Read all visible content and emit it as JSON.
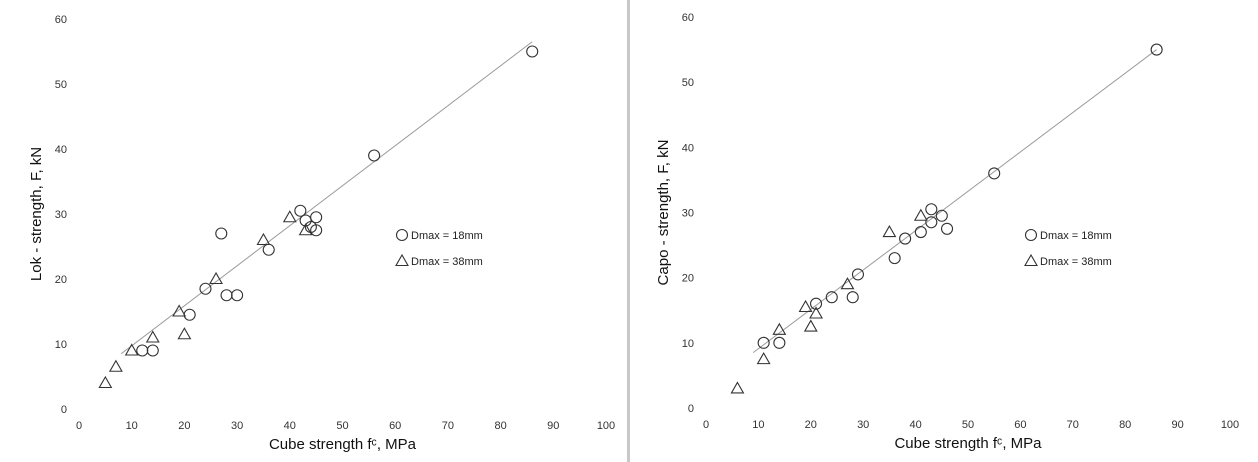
{
  "chart_data": [
    {
      "type": "scatter",
      "title": "",
      "xlabel": "Cube strength fᶜ, MPa",
      "ylabel": "Lok - strength, F, kN",
      "xlim": [
        0,
        100
      ],
      "ylim": [
        0,
        60
      ],
      "xticks": [
        0,
        10,
        20,
        30,
        40,
        50,
        60,
        70,
        80,
        90,
        100
      ],
      "yticks": [
        0,
        10,
        20,
        30,
        40,
        50,
        60
      ],
      "grid": false,
      "legend_position": "right-middle",
      "trendline": {
        "from": [
          8,
          8.5
        ],
        "to": [
          86,
          56.5
        ]
      },
      "series": [
        {
          "name": "Dmax = 18mm",
          "marker": "circle",
          "x": [
            12,
            14,
            21,
            24,
            27,
            28,
            30,
            36,
            42,
            43,
            44,
            45,
            45,
            56,
            86
          ],
          "y": [
            9,
            9,
            14.5,
            18.5,
            27,
            17.5,
            17.5,
            24.5,
            30.5,
            29,
            28,
            29.5,
            27.5,
            39,
            55
          ]
        },
        {
          "name": "Dmax = 38mm",
          "marker": "triangle",
          "x": [
            5,
            7,
            10,
            14,
            19,
            20,
            26,
            35,
            40,
            43
          ],
          "y": [
            4,
            6.5,
            9,
            11,
            15,
            11.5,
            20,
            26,
            29.5,
            27.5
          ]
        }
      ]
    },
    {
      "type": "scatter",
      "title": "",
      "xlabel": "Cube strength fᶜ, MPa",
      "ylabel": "Capo - strength, F, kN",
      "xlim": [
        0,
        100
      ],
      "ylim": [
        0,
        60
      ],
      "xticks": [
        0,
        10,
        20,
        30,
        40,
        50,
        60,
        70,
        80,
        90,
        100
      ],
      "yticks": [
        0,
        10,
        20,
        30,
        40,
        50,
        60
      ],
      "grid": false,
      "legend_position": "right-middle",
      "trendline": {
        "from": [
          9,
          8.5
        ],
        "to": [
          86,
          55
        ]
      },
      "series": [
        {
          "name": "Dmax = 18mm",
          "marker": "circle",
          "x": [
            11,
            14,
            21,
            24,
            28,
            29,
            36,
            38,
            41,
            43,
            43,
            45,
            46,
            55,
            86
          ],
          "y": [
            10,
            10,
            16,
            17,
            17,
            20.5,
            23,
            26,
            27,
            30.5,
            28.5,
            29.5,
            27.5,
            36,
            55
          ]
        },
        {
          "name": "Dmax = 38mm",
          "marker": "triangle",
          "x": [
            6,
            11,
            14,
            19,
            20,
            21,
            27,
            35,
            41
          ],
          "y": [
            3,
            7.5,
            12,
            15.5,
            12.5,
            14.5,
            19,
            27,
            29.5
          ]
        }
      ]
    }
  ]
}
